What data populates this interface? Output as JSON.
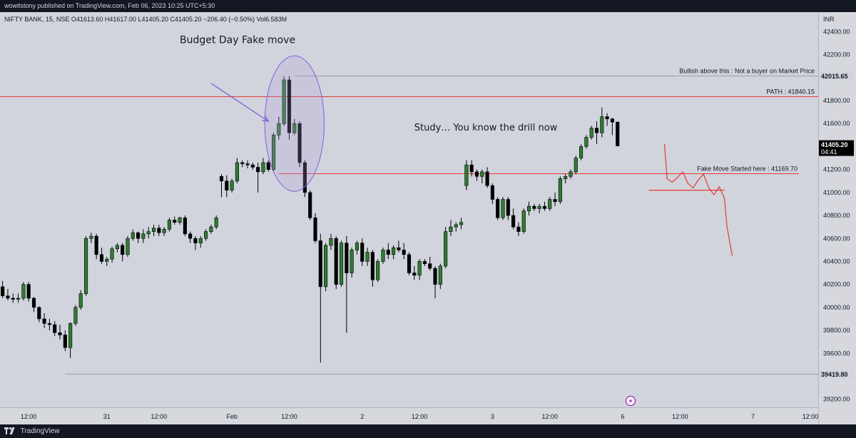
{
  "header": {
    "published": "wowitstony published on TradingView.com, Feb 06, 2023 10:25 UTC+5:30"
  },
  "footer": {
    "brand": "TradingView",
    "logo_icon": "tradingview-logo-icon"
  },
  "chart_data": {
    "type": "candlestick",
    "symbol_info": "NIFTY BANK, 15, NSE",
    "ohlc_readout": "O41613.60  H41617.00  L41405.20  C41405.20  −206.40 (−0.50%)  Vol6.583M",
    "currency": "INR",
    "y_ticks": [
      "42400.00",
      "42200.00",
      "41800.00",
      "41600.00",
      "41200.00",
      "41000.00",
      "40800.00",
      "40600.00",
      "40400.00",
      "40200.00",
      "40000.00",
      "39800.00",
      "39600.00",
      "39200.00"
    ],
    "y_tick_values": [
      42400,
      42200,
      41800,
      41600,
      41200,
      41000,
      40800,
      40600,
      40400,
      40200,
      40000,
      39800,
      39600,
      39200
    ],
    "ylim": [
      39130,
      42570
    ],
    "x_ticks": [
      {
        "label": "12:00",
        "bar": 5
      },
      {
        "label": "31",
        "bar": 20
      },
      {
        "label": "12:00",
        "bar": 30
      },
      {
        "label": "Feb",
        "bar": 44
      },
      {
        "label": "12:00",
        "bar": 55
      },
      {
        "label": "2",
        "bar": 69
      },
      {
        "label": "12:00",
        "bar": 80
      },
      {
        "label": "3",
        "bar": 94
      },
      {
        "label": "12:00",
        "bar": 105
      },
      {
        "label": "6",
        "bar": 119
      },
      {
        "label": "12:00",
        "bar": 130
      },
      {
        "label": "7",
        "bar": 144
      },
      {
        "label": "12:00",
        "bar": 155
      }
    ],
    "bar_count_axis": 157,
    "candles": [
      [
        40180,
        40230,
        40080,
        40100
      ],
      [
        40100,
        40160,
        40060,
        40080
      ],
      [
        40080,
        40120,
        40040,
        40070
      ],
      [
        40070,
        40120,
        40040,
        40080
      ],
      [
        40080,
        40220,
        40060,
        40200
      ],
      [
        40200,
        40220,
        40050,
        40080
      ],
      [
        40080,
        40090,
        39960,
        40000
      ],
      [
        40000,
        40010,
        39870,
        39900
      ],
      [
        39900,
        39950,
        39820,
        39860
      ],
      [
        39860,
        39900,
        39800,
        39850
      ],
      [
        39850,
        39880,
        39750,
        39780
      ],
      [
        39780,
        39850,
        39720,
        39760
      ],
      [
        39760,
        39800,
        39620,
        39650
      ],
      [
        39650,
        39870,
        39560,
        39860
      ],
      [
        39860,
        40020,
        39840,
        40000
      ],
      [
        40000,
        40150,
        39980,
        40120
      ],
      [
        40120,
        40620,
        40100,
        40600
      ],
      [
        40600,
        40650,
        40560,
        40620
      ],
      [
        40620,
        40640,
        40420,
        40460
      ],
      [
        40460,
        40520,
        40380,
        40400
      ],
      [
        40400,
        40440,
        40360,
        40420
      ],
      [
        40420,
        40530,
        40390,
        40510
      ],
      [
        40510,
        40560,
        40480,
        40540
      ],
      [
        40540,
        40560,
        40400,
        40460
      ],
      [
        40460,
        40620,
        40440,
        40600
      ],
      [
        40600,
        40680,
        40580,
        40650
      ],
      [
        40650,
        40660,
        40560,
        40600
      ],
      [
        40600,
        40680,
        40560,
        40640
      ],
      [
        40640,
        40700,
        40600,
        40660
      ],
      [
        40660,
        40720,
        40620,
        40690
      ],
      [
        40690,
        40720,
        40620,
        40650
      ],
      [
        40650,
        40700,
        40620,
        40680
      ],
      [
        40680,
        40780,
        40660,
        40760
      ],
      [
        40760,
        40790,
        40720,
        40740
      ],
      [
        40740,
        40790,
        40720,
        40780
      ],
      [
        40780,
        40800,
        40620,
        40640
      ],
      [
        40640,
        40660,
        40560,
        40600
      ],
      [
        40600,
        40620,
        40500,
        40560
      ],
      [
        40560,
        40620,
        40520,
        40600
      ],
      [
        40600,
        40680,
        40580,
        40660
      ],
      [
        40660,
        40720,
        40640,
        40700
      ],
      [
        40700,
        40800,
        40680,
        40780
      ],
      [
        41140,
        41160,
        40960,
        41100
      ],
      [
        41100,
        41150,
        40960,
        41020
      ],
      [
        41020,
        41120,
        41000,
        41100
      ],
      [
        41100,
        41300,
        41080,
        41260
      ],
      [
        41260,
        41280,
        41220,
        41250
      ],
      [
        41250,
        41280,
        41210,
        41240
      ],
      [
        41240,
        41260,
        41200,
        41220
      ],
      [
        41220,
        41260,
        41000,
        41180
      ],
      [
        41180,
        41300,
        41160,
        41260
      ],
      [
        41260,
        41280,
        41180,
        41200
      ],
      [
        41200,
        41520,
        41180,
        41500
      ],
      [
        41500,
        41660,
        41460,
        41600
      ],
      [
        41600,
        42010,
        41580,
        41980
      ],
      [
        41980,
        42015,
        41460,
        41520
      ],
      [
        41520,
        41640,
        41500,
        41600
      ],
      [
        41600,
        41620,
        41220,
        41260
      ],
      [
        41260,
        41280,
        40960,
        41000
      ],
      [
        41000,
        41020,
        40760,
        40780
      ],
      [
        40780,
        40820,
        40560,
        40580
      ],
      [
        40580,
        40640,
        39520,
        40180
      ],
      [
        40180,
        40560,
        40140,
        40540
      ],
      [
        40540,
        40640,
        40500,
        40600
      ],
      [
        40600,
        40620,
        40160,
        40200
      ],
      [
        40200,
        40580,
        40180,
        40560
      ],
      [
        40560,
        40620,
        39780,
        40300
      ],
      [
        40300,
        40520,
        40260,
        40500
      ],
      [
        40500,
        40580,
        40460,
        40560
      ],
      [
        40560,
        40600,
        40360,
        40400
      ],
      [
        40400,
        40520,
        40360,
        40480
      ],
      [
        40480,
        40500,
        40180,
        40240
      ],
      [
        40240,
        40420,
        40220,
        40400
      ],
      [
        40400,
        40520,
        40380,
        40500
      ],
      [
        40500,
        40560,
        40420,
        40460
      ],
      [
        40460,
        40540,
        40420,
        40520
      ],
      [
        40520,
        40580,
        40480,
        40500
      ],
      [
        40500,
        40560,
        40420,
        40460
      ],
      [
        40460,
        40480,
        40280,
        40300
      ],
      [
        40300,
        40360,
        40240,
        40280
      ],
      [
        40280,
        40420,
        40240,
        40400
      ],
      [
        40400,
        40420,
        40360,
        40380
      ],
      [
        40380,
        40440,
        40320,
        40340
      ],
      [
        40340,
        40360,
        40080,
        40200
      ],
      [
        40200,
        40380,
        40160,
        40360
      ],
      [
        40360,
        40700,
        40340,
        40660
      ],
      [
        40660,
        40760,
        40620,
        40700
      ],
      [
        40700,
        40740,
        40660,
        40720
      ],
      [
        40720,
        40780,
        40680,
        40740
      ],
      [
        41060,
        41280,
        41020,
        41240
      ],
      [
        41240,
        41280,
        41140,
        41180
      ],
      [
        41180,
        41200,
        41100,
        41140
      ],
      [
        41140,
        41200,
        41080,
        41180
      ],
      [
        41180,
        41220,
        41040,
        41060
      ],
      [
        41060,
        41080,
        40900,
        40940
      ],
      [
        40940,
        40960,
        40760,
        40780
      ],
      [
        40780,
        40960,
        40760,
        40940
      ],
      [
        40940,
        40960,
        40760,
        40800
      ],
      [
        40800,
        40860,
        40680,
        40700
      ],
      [
        40700,
        40740,
        40620,
        40660
      ],
      [
        40660,
        40860,
        40640,
        40840
      ],
      [
        40840,
        40920,
        40800,
        40880
      ],
      [
        40880,
        40900,
        40840,
        40860
      ],
      [
        40860,
        40900,
        40820,
        40880
      ],
      [
        40880,
        40920,
        40840,
        40860
      ],
      [
        40860,
        40960,
        40840,
        40940
      ],
      [
        40940,
        41000,
        40880,
        40920
      ],
      [
        40920,
        41140,
        40900,
        41120
      ],
      [
        41120,
        41160,
        41080,
        41140
      ],
      [
        41140,
        41200,
        41120,
        41180
      ],
      [
        41180,
        41320,
        41160,
        41300
      ],
      [
        41300,
        41420,
        41280,
        41400
      ],
      [
        41400,
        41500,
        41380,
        41480
      ],
      [
        41480,
        41580,
        41460,
        41560
      ],
      [
        41560,
        41620,
        41420,
        41520
      ],
      [
        41520,
        41740,
        41480,
        41660
      ],
      [
        41660,
        41690,
        41580,
        41640
      ],
      [
        41640,
        41650,
        41500,
        41613
      ],
      [
        41613,
        41617,
        41405,
        41405
      ]
    ],
    "series_colors": {
      "up": "#2e7d32",
      "down": "#000000",
      "wick": "#000000"
    },
    "horizontal_lines": [
      {
        "price": 42015.65,
        "color": "#9e9e9e",
        "label": "Bullish above this : Not a buyer on Market Price",
        "start_bar": 56
      },
      {
        "price": 41840.15,
        "color": "#e53935",
        "label": "PATH : 41840.15",
        "start_bar": 0
      },
      {
        "price": 41169.7,
        "color": "#e53935",
        "label": "Fake Move Started here : 41169.70",
        "start_bar": 53
      },
      {
        "price": 39419.8,
        "color": "#9e9e9e",
        "label": "",
        "start_bar": 12
      }
    ],
    "price_badges": [
      {
        "price": 42015.65,
        "text": "42015.65",
        "bg": "#d1d4dc",
        "fg": "#131722"
      },
      {
        "price": 41405.2,
        "text": "41405.20",
        "sub": "04:41",
        "bg": "#000000",
        "fg": "#ffffff"
      },
      {
        "price": 39419.8,
        "text": "39419.80",
        "bg": "#d1d4dc",
        "fg": "#131722"
      }
    ],
    "annotations": [
      {
        "text": "Budget Day Fake move",
        "price": 42300,
        "bar": 34,
        "size": 14
      },
      {
        "text": "Study… You know the drill now",
        "price": 41540,
        "bar": 79,
        "size": 13
      }
    ],
    "annotation_colors": {
      "arrow": "#7b61d9",
      "ellipse": "#7b61d9",
      "projection": "#e53935"
    },
    "budget_ellipse": {
      "center_bar": 56,
      "center_price": 41600,
      "half_bars": 3,
      "half_price": 590
    },
    "budget_arrow": {
      "from": [
        40,
        41950
      ],
      "to": [
        51,
        41620
      ]
    },
    "projection_path": [
      [
        127,
        41420
      ],
      [
        127.3,
        41250
      ],
      [
        127.5,
        41120
      ],
      [
        128.5,
        41090
      ],
      [
        129.5,
        41130
      ],
      [
        130.5,
        41180
      ],
      [
        131.5,
        41080
      ],
      [
        132.5,
        41040
      ],
      [
        133.5,
        41110
      ],
      [
        134.5,
        41160
      ],
      [
        135.5,
        41040
      ],
      [
        136.5,
        40980
      ],
      [
        137.5,
        41050
      ],
      [
        138.5,
        40950
      ],
      [
        139,
        40700
      ],
      [
        140,
        40450
      ]
    ],
    "projection_level": {
      "price": 41020,
      "from_bar": 124,
      "to_bar": 138.5
    },
    "lightning_icon": "lightning-icon"
  }
}
